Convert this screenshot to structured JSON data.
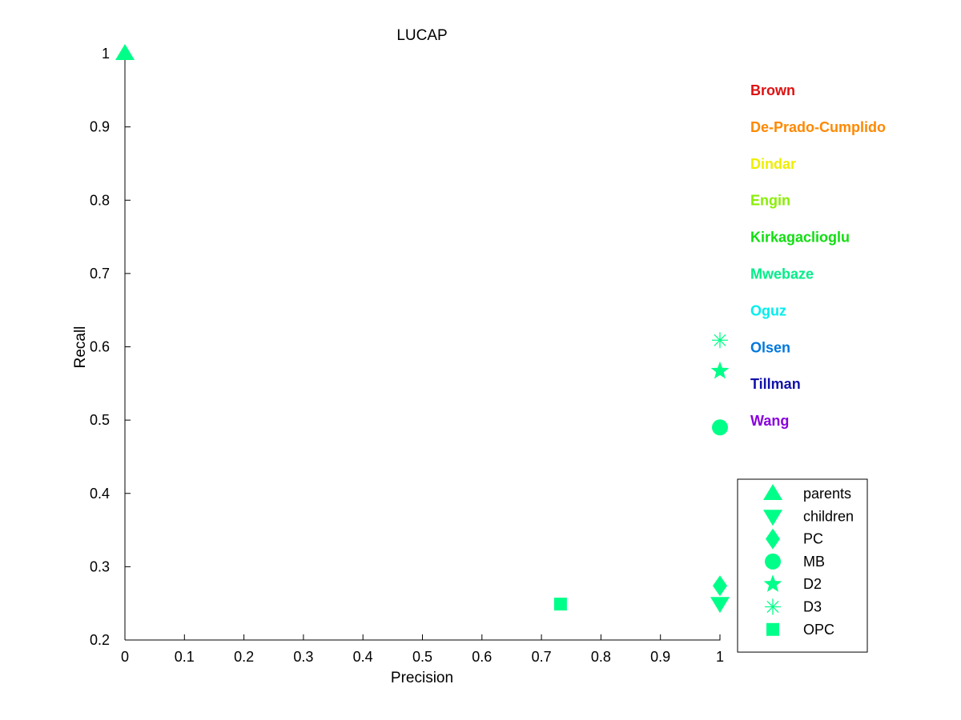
{
  "chart_data": {
    "type": "scatter",
    "title": "LUCAP",
    "xlabel": "Precision",
    "ylabel": "Recall",
    "xlim": [
      0,
      1
    ],
    "ylim": [
      0.2,
      1
    ],
    "x_ticks": [
      {
        "value": 0,
        "label": "0"
      },
      {
        "value": 0.1,
        "label": "0.1"
      },
      {
        "value": 0.2,
        "label": "0.2"
      },
      {
        "value": 0.3,
        "label": "0.3"
      },
      {
        "value": 0.4,
        "label": "0.4"
      },
      {
        "value": 0.5,
        "label": "0.5"
      },
      {
        "value": 0.6,
        "label": "0.6"
      },
      {
        "value": 0.7,
        "label": "0.7"
      },
      {
        "value": 0.8,
        "label": "0.8"
      },
      {
        "value": 0.9,
        "label": "0.9"
      },
      {
        "value": 1,
        "label": "1"
      }
    ],
    "y_ticks": [
      {
        "value": 0.2,
        "label": "0.2"
      },
      {
        "value": 0.3,
        "label": "0.3"
      },
      {
        "value": 0.4,
        "label": "0.4"
      },
      {
        "value": 0.5,
        "label": "0.5"
      },
      {
        "value": 0.6,
        "label": "0.6"
      },
      {
        "value": 0.7,
        "label": "0.7"
      },
      {
        "value": 0.8,
        "label": "0.8"
      },
      {
        "value": 0.9,
        "label": "0.9"
      },
      {
        "value": 1,
        "label": "1"
      }
    ],
    "grid": false,
    "marker_color": "#00ff88",
    "team_labels": [
      {
        "name": "Brown",
        "color": "#dd1111"
      },
      {
        "name": "De-Prado-Cumplido",
        "color": "#ff8800"
      },
      {
        "name": "Dindar",
        "color": "#eeee00"
      },
      {
        "name": "Engin",
        "color": "#88ee00"
      },
      {
        "name": "Kirkagaclioglu",
        "color": "#11dd11"
      },
      {
        "name": "Mwebaze",
        "color": "#00ee88"
      },
      {
        "name": "Oguz",
        "color": "#00eeee"
      },
      {
        "name": "Olsen",
        "color": "#0077dd"
      },
      {
        "name": "Tillman",
        "color": "#1111aa"
      },
      {
        "name": "Wang",
        "color": "#8800dd"
      }
    ],
    "series": [
      {
        "name": "parents",
        "marker": "triangle-up",
        "points": [
          {
            "x": 0,
            "y": 1
          }
        ]
      },
      {
        "name": "children",
        "marker": "triangle-down",
        "points": [
          {
            "x": 1,
            "y": 0.25
          }
        ]
      },
      {
        "name": "PC",
        "marker": "diamond",
        "points": [
          {
            "x": 1,
            "y": 0.274
          }
        ]
      },
      {
        "name": "MB",
        "marker": "circle",
        "points": [
          {
            "x": 1,
            "y": 0.49
          }
        ]
      },
      {
        "name": "D2",
        "marker": "star",
        "points": [
          {
            "x": 1,
            "y": 0.567
          }
        ]
      },
      {
        "name": "D3",
        "marker": "asterisk",
        "points": [
          {
            "x": 1,
            "y": 0.609
          }
        ]
      },
      {
        "name": "OPC",
        "marker": "square",
        "points": [
          {
            "x": 0.732,
            "y": 0.249
          }
        ]
      }
    ],
    "legend_position": "bottom-right",
    "team_labels_position": "right"
  }
}
